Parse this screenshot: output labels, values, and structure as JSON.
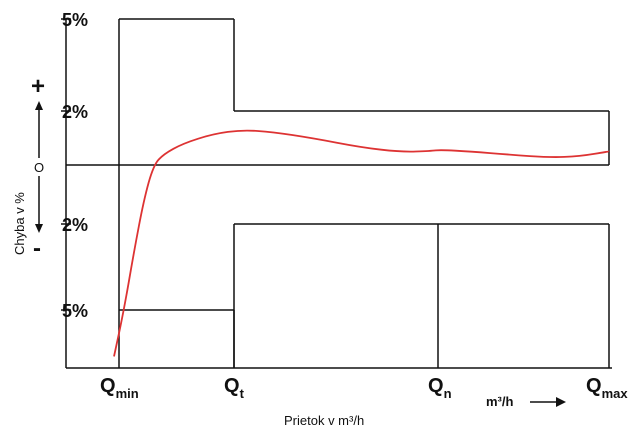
{
  "chart_data": {
    "type": "line",
    "title": "",
    "xlabel": "Prietok v  m³/h",
    "ylabel": "Chyba v  %",
    "unit_label": "m³/h",
    "zero_label": "O",
    "plus_label": "+",
    "minus_label": "-",
    "y_ticks": [
      {
        "value": 5,
        "label": "5%"
      },
      {
        "value": 2,
        "label": "2%"
      },
      {
        "value": -2,
        "label": "2%"
      },
      {
        "value": -5,
        "label": "5%"
      }
    ],
    "x_ticks": [
      {
        "key": "qmin",
        "main": "Q",
        "sub": "min"
      },
      {
        "key": "qt",
        "main": "Q",
        "sub": "t"
      },
      {
        "key": "qn",
        "main": "Q",
        "sub": "n"
      },
      {
        "key": "qmax",
        "main": "Q",
        "sub": "max"
      }
    ],
    "ylim": [
      -7,
      5
    ],
    "grid": false,
    "limit_envelope": {
      "upper": [
        {
          "from": "qmin",
          "to": "qt",
          "value": 5
        },
        {
          "from": "qt",
          "to": "qmax",
          "value": 2
        }
      ],
      "lower": [
        {
          "from": "qmin",
          "to": "qt",
          "value": -5
        },
        {
          "from": "qt",
          "to": "qmax",
          "value": -2
        }
      ]
    },
    "series": [
      {
        "color": "#dd3333",
        "points": [
          [
            0.0,
            -6.6
          ],
          [
            0.02,
            -5.0
          ],
          [
            0.04,
            -3.0
          ],
          [
            0.06,
            -1.2
          ],
          [
            0.08,
            0.0
          ],
          [
            0.1,
            0.4
          ],
          [
            0.14,
            0.8
          ],
          [
            0.2,
            1.15
          ],
          [
            0.26,
            1.3
          ],
          [
            0.32,
            1.22
          ],
          [
            0.4,
            1.0
          ],
          [
            0.5,
            0.65
          ],
          [
            0.58,
            0.48
          ],
          [
            0.64,
            0.52
          ],
          [
            0.66,
            0.56
          ],
          [
            0.72,
            0.5
          ],
          [
            0.8,
            0.38
          ],
          [
            0.88,
            0.28
          ],
          [
            0.94,
            0.32
          ],
          [
            1.0,
            0.5
          ]
        ]
      }
    ]
  }
}
